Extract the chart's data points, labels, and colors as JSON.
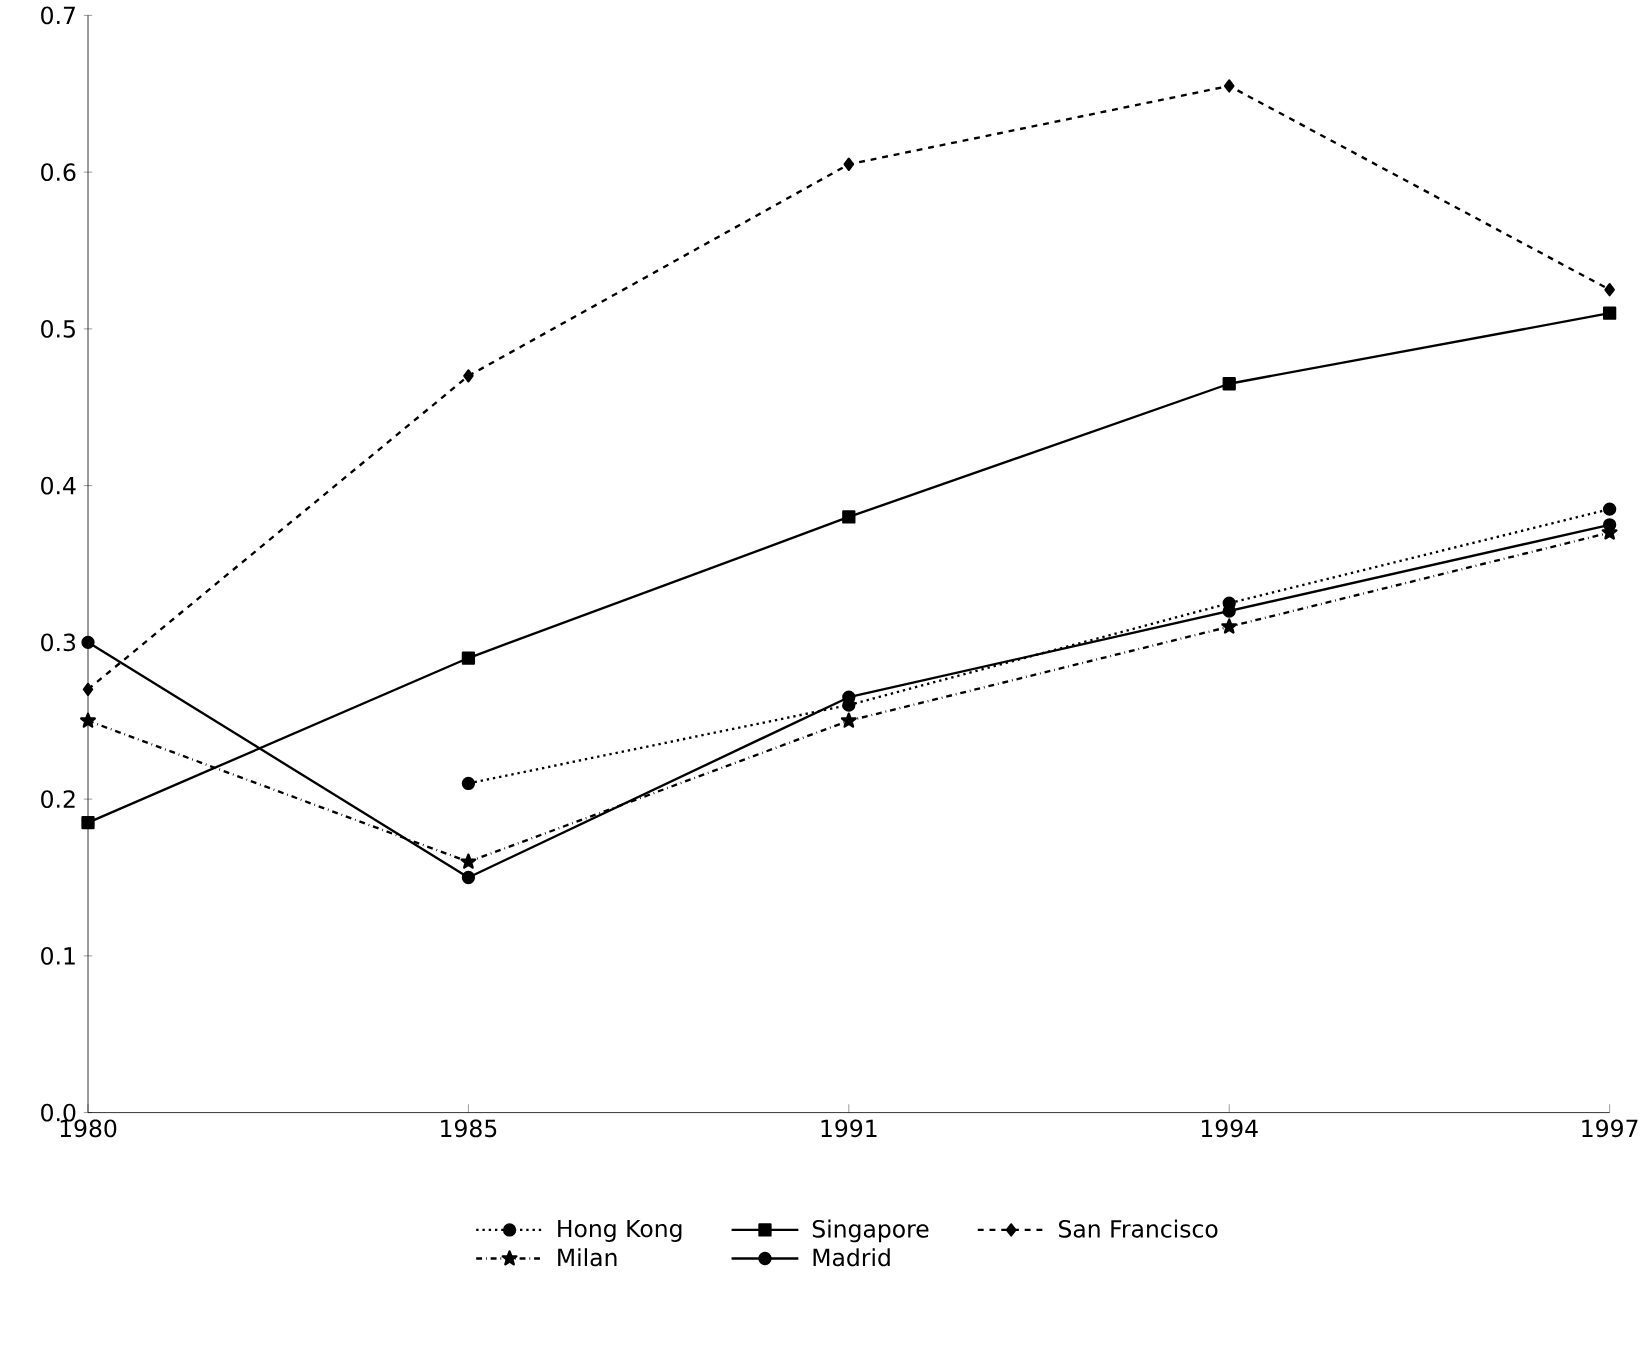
{
  "chart_data": {
    "type": "line",
    "categories": [
      "1980",
      "1985",
      "1991",
      "1994",
      "1997"
    ],
    "series": [
      {
        "name": "Hong Kong",
        "color": "#000000",
        "marker": "circle",
        "line_style": "dotted",
        "values": [
          null,
          0.21,
          0.26,
          0.325,
          0.385
        ]
      },
      {
        "name": "Singapore",
        "color": "#000000",
        "marker": "square",
        "line_style": "solid",
        "values": [
          0.185,
          0.29,
          0.38,
          0.465,
          0.51
        ]
      },
      {
        "name": "San Francisco",
        "color": "#000000",
        "marker": "diamond",
        "line_style": "dashed",
        "values": [
          0.27,
          0.47,
          0.605,
          0.655,
          0.525
        ]
      },
      {
        "name": "Milan",
        "color": "#000000",
        "marker": "star",
        "line_style": "dashdot",
        "values": [
          0.25,
          0.16,
          0.25,
          0.31,
          0.37
        ]
      },
      {
        "name": "Madrid",
        "color": "#000000",
        "marker": "circle",
        "line_style": "solid",
        "values": [
          0.3,
          0.15,
          0.265,
          0.32,
          0.375
        ]
      }
    ],
    "ylim": [
      0,
      0.7
    ],
    "yticks": [
      {
        "value": 0,
        "label": "0.0"
      },
      0.1,
      0.2,
      0.3,
      0.4,
      0.5,
      0.6,
      0.7
    ],
    "grid": false,
    "legend": "bottom"
  }
}
